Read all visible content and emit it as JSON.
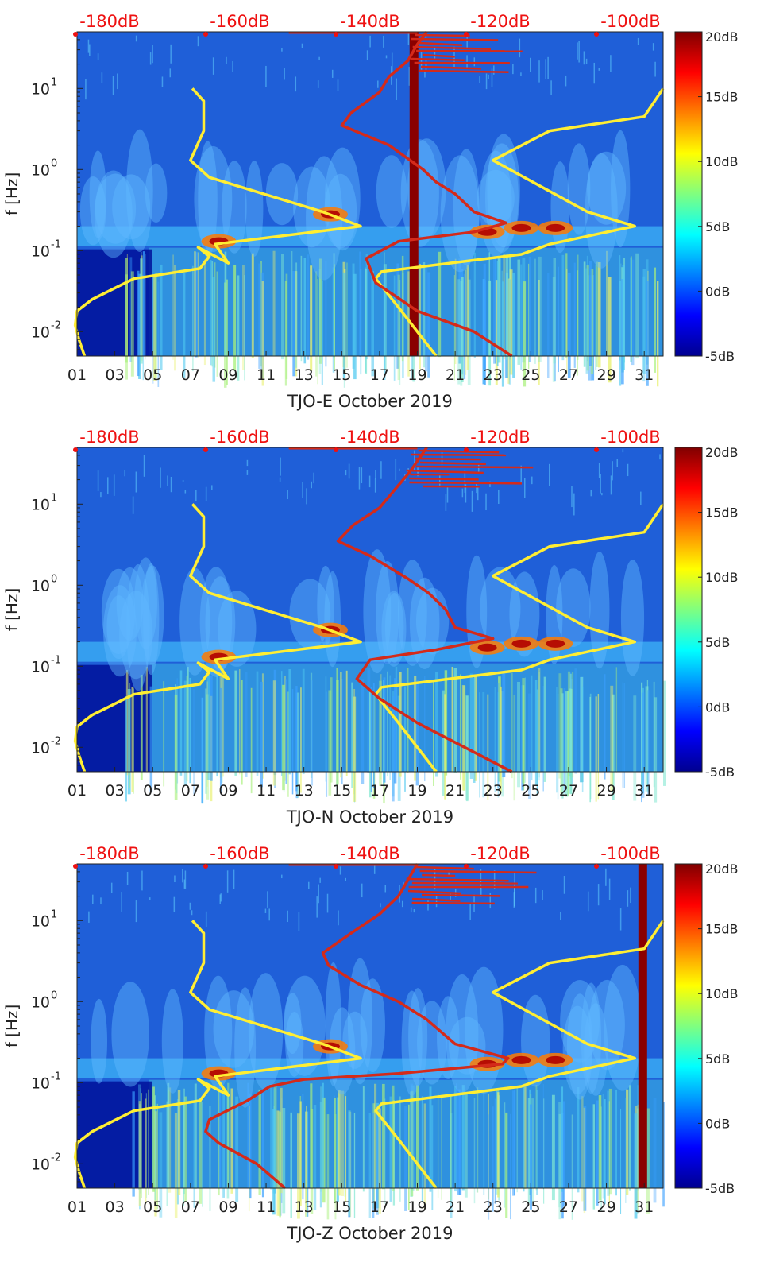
{
  "chart_data": [
    {
      "type": "heatmap",
      "xlabel": "TJO-E October 2019",
      "ylabel": "f [Hz]",
      "x_ticks": [
        "01",
        "03",
        "05",
        "07",
        "09",
        "11",
        "13",
        "15",
        "17",
        "19",
        "21",
        "23",
        "25",
        "27",
        "29",
        "31"
      ],
      "y_ticks": [
        "10^-2",
        "10^-1",
        "10^0",
        "10^1"
      ],
      "top_ticks": [
        "-180dB",
        "-160dB",
        "-140dB",
        "-120dB",
        "-100dB"
      ],
      "colorbar_ticks": [
        "20dB",
        "15dB",
        "10dB",
        "5dB",
        "0dB",
        "-5dB"
      ],
      "x_range_days": [
        1,
        32
      ],
      "y_range_hz": [
        0.005,
        50
      ],
      "colorbar_range_db": [
        -5,
        20
      ],
      "top_axis_range_db": [
        -185,
        -95
      ],
      "saturated_band_day": 18.8,
      "yellow_model_curves": {
        "low_noise_left": [
          [
            1.4,
            0.005
          ],
          [
            1.1,
            0.008
          ],
          [
            0.9,
            0.012
          ],
          [
            1,
            0.018
          ],
          [
            1.8,
            0.025
          ],
          [
            4,
            0.045
          ],
          [
            7.5,
            0.06
          ],
          [
            8,
            0.085
          ],
          [
            7.4,
            0.11
          ],
          [
            9,
            0.07
          ],
          [
            8.3,
            0.12
          ],
          [
            16,
            0.2
          ],
          [
            14,
            0.3
          ],
          [
            8,
            0.8
          ],
          [
            7,
            1.3
          ],
          [
            7.7,
            3
          ],
          [
            7.7,
            7
          ],
          [
            7.1,
            10
          ]
        ],
        "high_noise_right": [
          [
            20,
            0.005
          ],
          [
            18,
            0.02
          ],
          [
            16.8,
            0.045
          ],
          [
            17.1,
            0.055
          ],
          [
            24.5,
            0.09
          ],
          [
            26,
            0.12
          ],
          [
            30.5,
            0.2
          ],
          [
            28,
            0.3
          ],
          [
            23,
            1.3
          ],
          [
            26,
            3
          ],
          [
            31,
            4.5
          ],
          [
            32,
            10
          ]
        ]
      },
      "red_psd_curve_days": [
        [
          24,
          0.005
        ],
        [
          22,
          0.01
        ],
        [
          19,
          0.018
        ],
        [
          16.8,
          0.04
        ],
        [
          16.3,
          0.08
        ],
        [
          18,
          0.13
        ],
        [
          22,
          0.17
        ],
        [
          23.7,
          0.22
        ],
        [
          22,
          0.3
        ],
        [
          21,
          0.5
        ],
        [
          20,
          0.7
        ],
        [
          19.3,
          1
        ],
        [
          17.5,
          2
        ],
        [
          15,
          3.5
        ],
        [
          15.5,
          5
        ],
        [
          17,
          9
        ],
        [
          17.5,
          14
        ],
        [
          18.5,
          22
        ],
        [
          19,
          35
        ],
        [
          19.5,
          50
        ]
      ]
    },
    {
      "type": "heatmap",
      "xlabel": "TJO-N October 2019",
      "ylabel": "f [Hz]",
      "x_ticks": [
        "01",
        "03",
        "05",
        "07",
        "09",
        "11",
        "13",
        "15",
        "17",
        "19",
        "21",
        "23",
        "25",
        "27",
        "29",
        "31"
      ],
      "y_ticks": [
        "10^-2",
        "10^-1",
        "10^0",
        "10^1"
      ],
      "top_ticks": [
        "-180dB",
        "-160dB",
        "-140dB",
        "-120dB",
        "-100dB"
      ],
      "colorbar_ticks": [
        "20dB",
        "15dB",
        "10dB",
        "5dB",
        "0dB",
        "-5dB"
      ],
      "x_range_days": [
        1,
        32
      ],
      "y_range_hz": [
        0.005,
        50
      ],
      "colorbar_range_db": [
        -5,
        20
      ],
      "top_axis_range_db": [
        -185,
        -95
      ],
      "yellow_model_curves": {
        "low_noise_left": [
          [
            1.4,
            0.005
          ],
          [
            1.1,
            0.008
          ],
          [
            0.9,
            0.012
          ],
          [
            1,
            0.018
          ],
          [
            1.8,
            0.025
          ],
          [
            4,
            0.045
          ],
          [
            7.5,
            0.06
          ],
          [
            8,
            0.085
          ],
          [
            7.4,
            0.11
          ],
          [
            9,
            0.07
          ],
          [
            8.3,
            0.12
          ],
          [
            16,
            0.2
          ],
          [
            14,
            0.3
          ],
          [
            8,
            0.8
          ],
          [
            7,
            1.3
          ],
          [
            7.7,
            3
          ],
          [
            7.7,
            7
          ],
          [
            7.1,
            10
          ]
        ],
        "high_noise_right": [
          [
            20,
            0.005
          ],
          [
            18,
            0.02
          ],
          [
            16.8,
            0.045
          ],
          [
            17.1,
            0.055
          ],
          [
            24.5,
            0.09
          ],
          [
            26,
            0.12
          ],
          [
            30.5,
            0.2
          ],
          [
            28,
            0.3
          ],
          [
            23,
            1.3
          ],
          [
            26,
            3
          ],
          [
            31,
            4.5
          ],
          [
            32,
            10
          ]
        ]
      },
      "red_psd_curve_days": [
        [
          24,
          0.005
        ],
        [
          21.5,
          0.01
        ],
        [
          19,
          0.02
        ],
        [
          17,
          0.04
        ],
        [
          15.8,
          0.07
        ],
        [
          16.5,
          0.12
        ],
        [
          20,
          0.16
        ],
        [
          23,
          0.22
        ],
        [
          21,
          0.3
        ],
        [
          20.5,
          0.5
        ],
        [
          19.6,
          0.8
        ],
        [
          18.5,
          1.2
        ],
        [
          16.5,
          2.3
        ],
        [
          14.8,
          3.5
        ],
        [
          15.6,
          5.5
        ],
        [
          17,
          9
        ],
        [
          17.8,
          15
        ],
        [
          18.6,
          25
        ],
        [
          19.5,
          50
        ]
      ]
    },
    {
      "type": "heatmap",
      "xlabel": "TJO-Z October 2019",
      "ylabel": "f [Hz]",
      "x_ticks": [
        "01",
        "03",
        "05",
        "07",
        "09",
        "11",
        "13",
        "15",
        "17",
        "19",
        "21",
        "23",
        "25",
        "27",
        "29",
        "31"
      ],
      "y_ticks": [
        "10^-2",
        "10^-1",
        "10^0",
        "10^1"
      ],
      "top_ticks": [
        "-180dB",
        "-160dB",
        "-140dB",
        "-120dB",
        "-100dB"
      ],
      "colorbar_ticks": [
        "20dB",
        "15dB",
        "10dB",
        "5dB",
        "0dB",
        "-5dB"
      ],
      "x_range_days": [
        1,
        32
      ],
      "y_range_hz": [
        0.005,
        50
      ],
      "colorbar_range_db": [
        -5,
        20
      ],
      "top_axis_range_db": [
        -185,
        -95
      ],
      "saturated_band_day": 30.9,
      "yellow_model_curves": {
        "low_noise_left": [
          [
            1.4,
            0.005
          ],
          [
            1.1,
            0.008
          ],
          [
            0.9,
            0.012
          ],
          [
            1,
            0.018
          ],
          [
            1.8,
            0.025
          ],
          [
            4,
            0.045
          ],
          [
            7.5,
            0.06
          ],
          [
            8,
            0.085
          ],
          [
            7.4,
            0.11
          ],
          [
            9,
            0.07
          ],
          [
            8.3,
            0.12
          ],
          [
            16,
            0.2
          ],
          [
            14,
            0.3
          ],
          [
            8,
            0.8
          ],
          [
            7,
            1.3
          ],
          [
            7.7,
            3
          ],
          [
            7.7,
            7
          ],
          [
            7.1,
            10
          ]
        ],
        "high_noise_right": [
          [
            20,
            0.005
          ],
          [
            18,
            0.02
          ],
          [
            16.8,
            0.045
          ],
          [
            17.1,
            0.055
          ],
          [
            24.5,
            0.09
          ],
          [
            26,
            0.12
          ],
          [
            30.5,
            0.2
          ],
          [
            28,
            0.3
          ],
          [
            23,
            1.3
          ],
          [
            26,
            3
          ],
          [
            31,
            4.5
          ],
          [
            32,
            10
          ]
        ]
      },
      "red_psd_curve_days": [
        [
          12,
          0.005
        ],
        [
          10.5,
          0.01
        ],
        [
          8.5,
          0.018
        ],
        [
          7.8,
          0.025
        ],
        [
          8,
          0.035
        ],
        [
          10,
          0.06
        ],
        [
          11.2,
          0.09
        ],
        [
          13,
          0.11
        ],
        [
          18,
          0.13
        ],
        [
          23.5,
          0.17
        ],
        [
          23.8,
          0.2
        ],
        [
          21,
          0.3
        ],
        [
          19.5,
          0.6
        ],
        [
          18,
          1
        ],
        [
          16,
          1.6
        ],
        [
          14.3,
          2.8
        ],
        [
          14,
          4
        ],
        [
          15.5,
          7
        ],
        [
          17,
          12
        ],
        [
          18,
          20
        ],
        [
          19,
          50
        ]
      ]
    }
  ],
  "colors": {
    "red_curve": "#d42a1a",
    "yellow_curve": "#ffee33",
    "top_labels": "#ee1111",
    "saturated_band": "#8a0000"
  }
}
